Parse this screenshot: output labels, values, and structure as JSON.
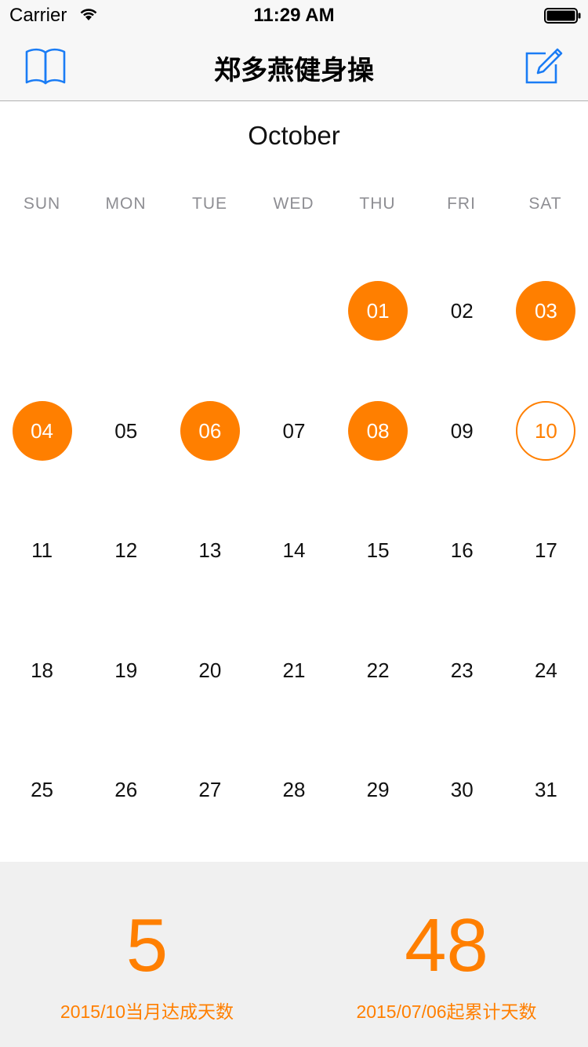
{
  "status_bar": {
    "carrier": "Carrier",
    "time": "11:29 AM"
  },
  "nav": {
    "title": "郑多燕健身操",
    "left_icon": "book-icon",
    "right_icon": "compose-icon"
  },
  "calendar": {
    "month": "October",
    "weekdays": [
      "SUN",
      "MON",
      "TUE",
      "WED",
      "THU",
      "FRI",
      "SAT"
    ],
    "first_weekday_index": 4,
    "days": [
      "01",
      "02",
      "03",
      "04",
      "05",
      "06",
      "07",
      "08",
      "09",
      "10",
      "11",
      "12",
      "13",
      "14",
      "15",
      "16",
      "17",
      "18",
      "19",
      "20",
      "21",
      "22",
      "23",
      "24",
      "25",
      "26",
      "27",
      "28",
      "29",
      "30",
      "31"
    ],
    "completed_days": [
      "01",
      "03",
      "04",
      "06",
      "08"
    ],
    "today": "10",
    "accent_color": "#ff7f00"
  },
  "stats": {
    "month_count": "5",
    "month_label": "2015/10当月达成天数",
    "total_count": "48",
    "total_label": "2015/07/06起累计天数"
  }
}
